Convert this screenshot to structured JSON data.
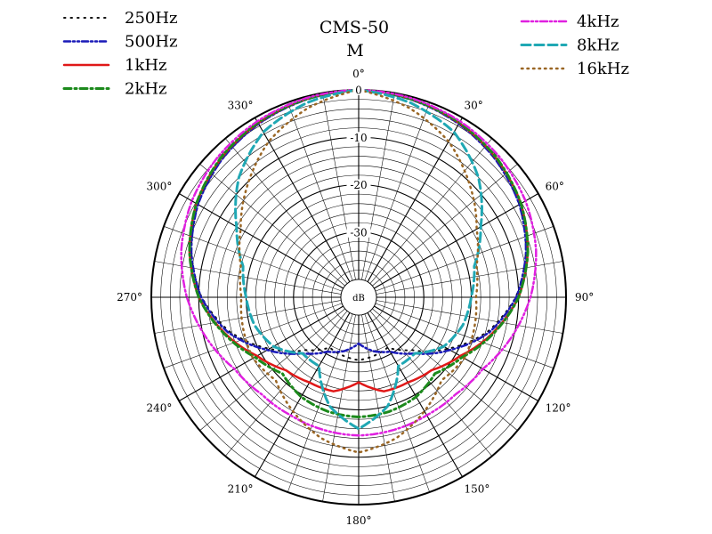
{
  "chart_data": {
    "type": "polar",
    "title": "CMS-50",
    "subtitle": "M",
    "center_label": "dB",
    "radial_axis": {
      "min_db": -40,
      "max_db": 0,
      "ring_step_db": 2,
      "labeled_rings": [
        {
          "value": -10,
          "label": "-10"
        },
        {
          "value": -20,
          "label": "-20"
        },
        {
          "value": -30,
          "label": "-30"
        }
      ],
      "top_label": "0"
    },
    "angular_axis": {
      "zero_direction": "top",
      "direction": "clockwise",
      "spoke_step_deg": 30,
      "labels": [
        {
          "angle": 0,
          "label": "0°"
        },
        {
          "angle": 30,
          "label": "30°"
        },
        {
          "angle": 60,
          "label": "60°"
        },
        {
          "angle": 90,
          "label": "90°"
        },
        {
          "angle": 120,
          "label": "120°"
        },
        {
          "angle": 150,
          "label": "150°"
        },
        {
          "angle": 180,
          "label": "180°"
        },
        {
          "angle": 210,
          "label": "210°"
        },
        {
          "angle": 240,
          "label": "240°"
        },
        {
          "angle": 270,
          "label": "270°"
        },
        {
          "angle": 300,
          "label": "300°"
        },
        {
          "angle": 330,
          "label": "330°"
        }
      ]
    },
    "angles": [
      0,
      15,
      30,
      45,
      60,
      75,
      90,
      105,
      120,
      135,
      150,
      165,
      180
    ],
    "series": [
      {
        "name": "250Hz",
        "color": "#111111",
        "dash": "1.5 6",
        "width": 2,
        "values": [
          0,
          -0.6,
          -1.5,
          -2.8,
          -4.6,
          -7.2,
          -10.6,
          -15.6,
          -22,
          -28,
          -31.5,
          -31,
          -30.5
        ]
      },
      {
        "name": "500Hz",
        "color": "#1a1ab8",
        "dash": "7 3 2 3 2 3",
        "width": 2.5,
        "values": [
          0,
          -0.6,
          -1.5,
          -2.8,
          -4.6,
          -7.2,
          -10.5,
          -15.2,
          -21.5,
          -27,
          -30.5,
          -32,
          -34
        ]
      },
      {
        "name": "1kHz",
        "color": "#e01818",
        "dash": "",
        "width": 2.5,
        "values": [
          0,
          -0.5,
          -1.3,
          -2.5,
          -4.2,
          -6.8,
          -10,
          -14.5,
          -19,
          -22,
          -23,
          -23.2,
          -25.8
        ]
      },
      {
        "name": "2kHz",
        "color": "#1c8a1c",
        "dash": "8 4 2 4",
        "width": 3,
        "values": [
          0,
          -0.5,
          -1.2,
          -2.4,
          -4.2,
          -6.8,
          -10,
          -14.3,
          -18.5,
          -21,
          -19.5,
          -18.8,
          -18.5
        ]
      },
      {
        "name": "4kHz",
        "color": "#e020e0",
        "dash": "8 3 2 3 2 3",
        "width": 2.5,
        "values": [
          0,
          -0.3,
          -0.9,
          -1.8,
          -3.1,
          -5,
          -7.5,
          -10.5,
          -13.5,
          -14.8,
          -15,
          -14.8,
          -14.6
        ]
      },
      {
        "name": "8kHz",
        "color": "#20a8b4",
        "dash": "10 5",
        "width": 3,
        "values": [
          0,
          -1.3,
          -3.5,
          -8,
          -14,
          -18.5,
          -20,
          -21,
          -23,
          -27,
          -27,
          -20,
          -16
        ]
      },
      {
        "name": "16kHz",
        "color": "#9a6624",
        "dash": "1.5 5",
        "width": 2.5,
        "values": [
          0,
          -2.4,
          -5.8,
          -10.5,
          -15,
          -18,
          -19,
          -18.5,
          -18,
          -19,
          -16,
          -13,
          -11
        ]
      }
    ],
    "legend": {
      "placement": "top-left and top-right",
      "left": [
        "250Hz",
        "500Hz",
        "1kHz",
        "2kHz"
      ],
      "right": [
        "4kHz",
        "8kHz",
        "16kHz"
      ]
    },
    "grid": true,
    "symmetry": "mirrored about 0°–180° axis"
  }
}
